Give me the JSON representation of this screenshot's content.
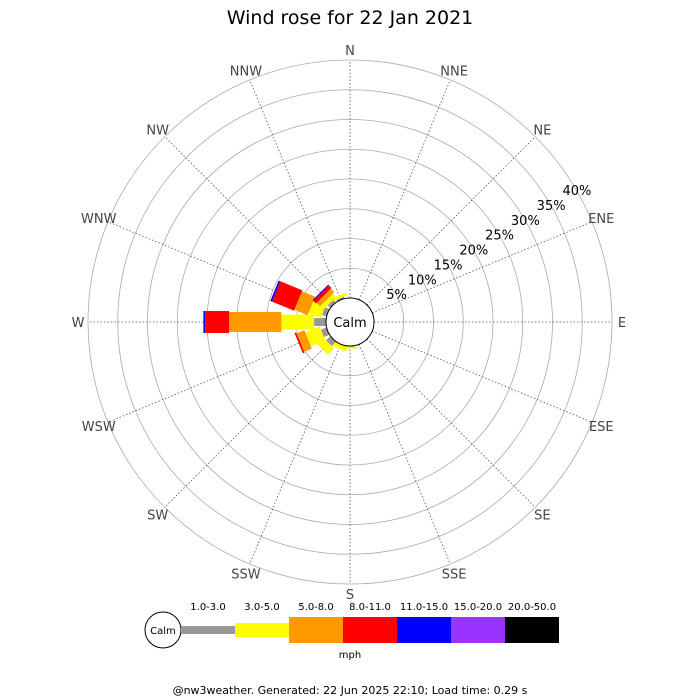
{
  "chart_data": {
    "type": "wind-rose",
    "title": "Wind rose for 22 Jan 2021",
    "directions": [
      "N",
      "NNE",
      "NE",
      "ENE",
      "E",
      "ESE",
      "SE",
      "SSE",
      "S",
      "SSW",
      "SW",
      "WSW",
      "W",
      "WNW",
      "NW",
      "NNW"
    ],
    "radial_ticks": [
      5,
      10,
      15,
      20,
      25,
      30,
      35,
      40
    ],
    "radial_tick_labels": [
      "5%",
      "10%",
      "15%",
      "20%",
      "25%",
      "30%",
      "35%",
      "40%"
    ],
    "radial_max": 40,
    "calm_label": "Calm",
    "speed_bins": [
      {
        "label": "1.0-3.0",
        "color": "#999999"
      },
      {
        "label": "3.0-5.0",
        "color": "#ffff00"
      },
      {
        "label": "5.0-8.0",
        "color": "#ff9900"
      },
      {
        "label": "8.0-11.0",
        "color": "#ff0000"
      },
      {
        "label": "11.0-15.0",
        "color": "#0000ff"
      },
      {
        "label": "15.0-20.0",
        "color": "#9933ff"
      },
      {
        "label": "20.0-50.0",
        "color": "#000000"
      }
    ],
    "speed_unit": "mph",
    "series": [
      {
        "direction": "S",
        "values": [
          0.1,
          0.3,
          0.0,
          0.0,
          0,
          0,
          0
        ]
      },
      {
        "direction": "SSW",
        "values": [
          0.0,
          0.8,
          0.0,
          0.0,
          0,
          0,
          0
        ]
      },
      {
        "direction": "SW",
        "values": [
          1.0,
          1.5,
          0.0,
          0.0,
          0,
          0,
          0
        ]
      },
      {
        "direction": "WSW",
        "values": [
          1.0,
          2.6,
          1.4,
          0.3,
          0,
          0,
          0
        ]
      },
      {
        "direction": "W",
        "values": [
          2.0,
          5.5,
          8.8,
          4.0,
          0.3,
          0,
          0
        ]
      },
      {
        "direction": "WNW",
        "values": [
          0.8,
          2.2,
          2.4,
          4.0,
          0.3,
          0,
          0
        ]
      },
      {
        "direction": "NW",
        "values": [
          0.6,
          0.8,
          0.8,
          0.6,
          0.2,
          0,
          0
        ]
      },
      {
        "direction": "NNW",
        "values": [
          0.3,
          0.5,
          0.0,
          0.0,
          0,
          0,
          0
        ]
      }
    ]
  },
  "footer": "@nw3weather. Generated: 22 Jun 2025 22:10; Load time: 0.29 s"
}
